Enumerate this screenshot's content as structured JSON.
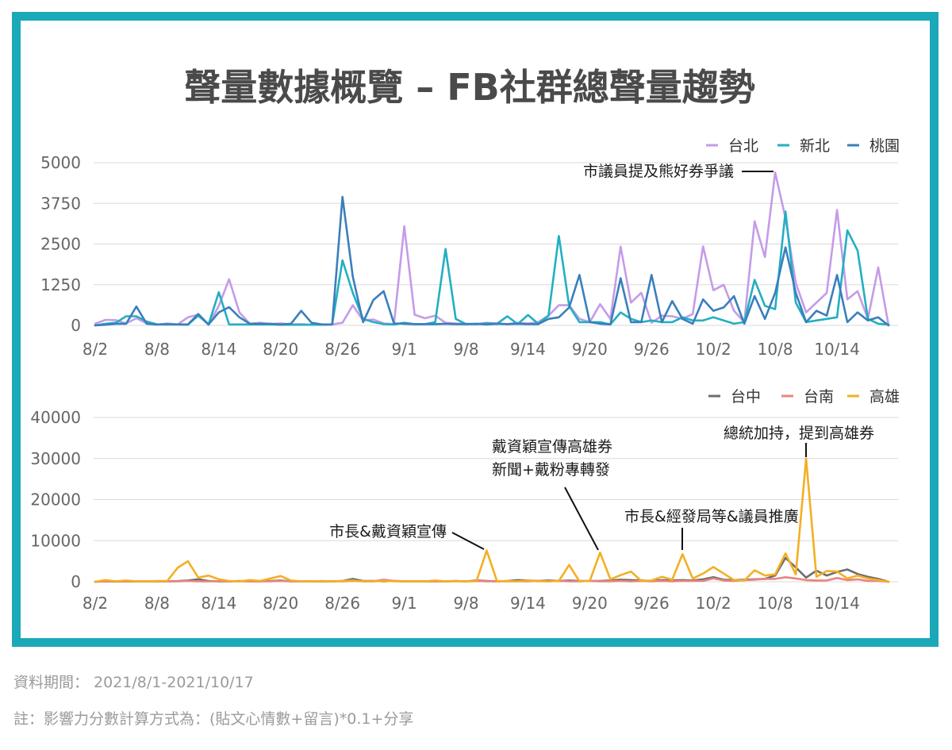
{
  "header": {
    "title": "聲量數據概覽 – FB社群總聲量趨勢"
  },
  "theme": {
    "frame_color": "#1ba8b9"
  },
  "footer": {
    "period": "資料期間： 2021/8/1-2021/10/17",
    "note": "註：影響力分數計算方式為：(貼文心情數+留言)*0.1+分享"
  },
  "chart_data": [
    {
      "type": "line",
      "x_tick_labels": [
        "8/2",
        "8/8",
        "8/14",
        "8/20",
        "8/26",
        "9/1",
        "9/8",
        "9/14",
        "9/20",
        "9/26",
        "10/2",
        "10/8",
        "10/14"
      ],
      "yticks": [
        0,
        1250,
        2500,
        3750,
        5000
      ],
      "ylim": [
        0,
        5000
      ],
      "grid": true,
      "legend": "top-right",
      "series": [
        {
          "name": "台北",
          "color": "#c59be8",
          "values": [
            50,
            170,
            160,
            60,
            220,
            60,
            20,
            60,
            30,
            250,
            330,
            20,
            600,
            1420,
            400,
            50,
            80,
            40,
            60,
            30,
            40,
            20,
            20,
            30,
            80,
            620,
            150,
            180,
            60,
            40,
            3050,
            330,
            220,
            300,
            80,
            60,
            50,
            40,
            80,
            60,
            40,
            80,
            60,
            100,
            300,
            620,
            620,
            200,
            100,
            650,
            200,
            2420,
            700,
            1000,
            80,
            300,
            280,
            200,
            350,
            2430,
            1080,
            1250,
            450,
            100,
            3200,
            2100,
            4700,
            3300,
            1300,
            400,
            700,
            1000,
            3550,
            800,
            1050,
            200,
            1780,
            0
          ]
        },
        {
          "name": "新北",
          "color": "#22afc2",
          "values": [
            0,
            50,
            80,
            280,
            280,
            120,
            30,
            40,
            30,
            20,
            300,
            30,
            1020,
            30,
            30,
            30,
            30,
            30,
            20,
            20,
            20,
            20,
            20,
            30,
            2000,
            1000,
            200,
            100,
            40,
            30,
            80,
            40,
            40,
            100,
            2350,
            200,
            40,
            40,
            60,
            50,
            280,
            40,
            320,
            50,
            300,
            2750,
            600,
            100,
            100,
            100,
            30,
            400,
            200,
            100,
            150,
            100,
            100,
            250,
            150,
            150,
            250,
            150,
            50,
            100,
            1400,
            600,
            500,
            3500,
            700,
            100,
            150,
            200,
            250,
            2920,
            2300,
            200,
            50,
            30
          ]
        },
        {
          "name": "桃園",
          "color": "#3a7fbb",
          "values": [
            0,
            20,
            50,
            50,
            580,
            50,
            30,
            30,
            30,
            30,
            350,
            30,
            400,
            560,
            250,
            50,
            50,
            50,
            30,
            50,
            450,
            80,
            30,
            30,
            3950,
            1500,
            100,
            780,
            1050,
            60,
            50,
            40,
            40,
            40,
            50,
            40,
            40,
            50,
            30,
            50,
            40,
            50,
            40,
            40,
            200,
            250,
            550,
            1550,
            100,
            50,
            30,
            1450,
            100,
            100,
            1550,
            100,
            750,
            200,
            50,
            800,
            450,
            550,
            900,
            50,
            900,
            200,
            1000,
            2400,
            1000,
            100,
            450,
            300,
            1550,
            100,
            400,
            150,
            250,
            0
          ]
        }
      ],
      "annotations": [
        {
          "text": "市議員提及熊好券爭議"
        }
      ]
    },
    {
      "type": "line",
      "x_tick_labels": [
        "8/2",
        "8/8",
        "8/14",
        "8/20",
        "8/26",
        "9/1",
        "9/8",
        "9/14",
        "9/20",
        "9/26",
        "10/2",
        "10/8",
        "10/14"
      ],
      "yticks": [
        0,
        10000,
        20000,
        30000,
        40000
      ],
      "ylim": [
        0,
        40000
      ],
      "grid": true,
      "legend": "top-right",
      "series": [
        {
          "name": "台中",
          "color": "#6e6e6e",
          "values": [
            0,
            100,
            50,
            100,
            50,
            100,
            100,
            100,
            150,
            300,
            600,
            200,
            100,
            100,
            200,
            100,
            100,
            200,
            300,
            100,
            100,
            100,
            100,
            100,
            200,
            700,
            200,
            200,
            100,
            200,
            100,
            100,
            100,
            100,
            100,
            200,
            100,
            300,
            200,
            100,
            200,
            400,
            300,
            200,
            300,
            200,
            300,
            200,
            200,
            200,
            300,
            500,
            400,
            300,
            200,
            400,
            300,
            400,
            300,
            600,
            1100,
            500,
            400,
            500,
            600,
            700,
            1500,
            5800,
            3500,
            1000,
            2700,
            1500,
            2400,
            3000,
            1900,
            1200,
            700,
            0
          ]
        },
        {
          "name": "台南",
          "color": "#e8857e",
          "values": [
            0,
            100,
            100,
            100,
            50,
            100,
            100,
            100,
            100,
            200,
            100,
            100,
            100,
            100,
            100,
            100,
            100,
            100,
            200,
            100,
            100,
            100,
            100,
            100,
            100,
            200,
            100,
            100,
            500,
            200,
            100,
            100,
            100,
            100,
            100,
            100,
            100,
            200,
            100,
            100,
            100,
            100,
            100,
            200,
            100,
            200,
            100,
            100,
            200,
            100,
            100,
            200,
            100,
            200,
            100,
            200,
            100,
            200,
            200,
            200,
            800,
            300,
            200,
            400,
            500,
            700,
            700,
            1100,
            800,
            400,
            300,
            300,
            900,
            400,
            600,
            200,
            200,
            0
          ]
        },
        {
          "name": "高雄",
          "color": "#f4af22",
          "values": [
            0,
            400,
            100,
            300,
            100,
            100,
            200,
            200,
            3400,
            5000,
            1000,
            1500,
            600,
            200,
            100,
            400,
            200,
            800,
            1400,
            300,
            100,
            100,
            200,
            100,
            200,
            300,
            100,
            100,
            200,
            100,
            100,
            100,
            100,
            300,
            100,
            200,
            100,
            100,
            7600,
            100,
            200,
            100,
            300,
            100,
            100,
            200,
            4100,
            100,
            200,
            7100,
            600,
            1600,
            2500,
            200,
            300,
            1200,
            500,
            6700,
            800,
            2000,
            3600,
            2000,
            400,
            300,
            2800,
            1500,
            1800,
            6900,
            1800,
            30000,
            1200,
            2600,
            2500,
            800,
            1500,
            800,
            400,
            0
          ]
        }
      ],
      "annotations": [
        {
          "text": "市長&戴資穎宣傳"
        },
        {
          "lines": [
            "戴資穎宣傳高雄券",
            "新聞+戴粉專轉發"
          ]
        },
        {
          "text": "市長&經發局等&議員推廣"
        },
        {
          "text": "總統加持，提到高雄券"
        }
      ]
    }
  ]
}
